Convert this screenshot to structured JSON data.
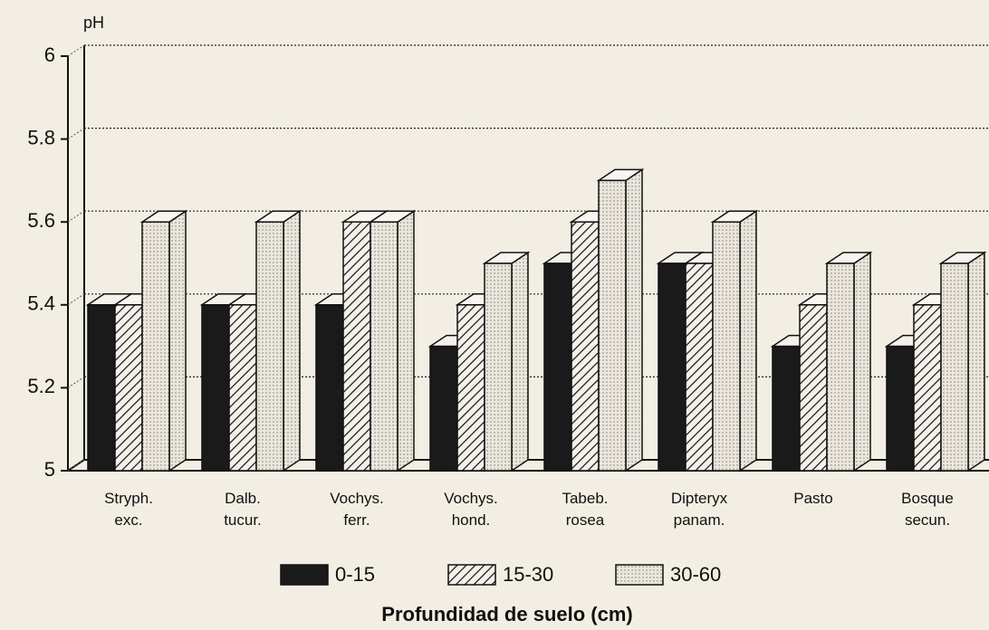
{
  "chart_data": {
    "type": "bar",
    "y_label": "pH",
    "x_title": "Profundidad de suelo (cm)",
    "categories": [
      "Stryph. exc.",
      "Dalb. tucur.",
      "Vochys. ferr.",
      "Vochys. hond.",
      "Tabeb. rosea",
      "Dipteryx panam.",
      "Pasto",
      "Bosque secun."
    ],
    "series": [
      {
        "name": "0-15",
        "color": "#1a1a1a",
        "values": [
          5.4,
          5.4,
          5.4,
          5.3,
          5.5,
          5.5,
          5.3,
          5.3
        ]
      },
      {
        "name": "15-30",
        "color": "hatch",
        "values": [
          5.4,
          5.4,
          5.6,
          5.4,
          5.6,
          5.5,
          5.4,
          5.4
        ]
      },
      {
        "name": "30-60",
        "color": "dots",
        "values": [
          5.6,
          5.6,
          5.6,
          5.5,
          5.7,
          5.6,
          5.5,
          5.5
        ]
      }
    ],
    "ylim": [
      5,
      6
    ],
    "yticks": [
      5,
      5.2,
      5.4,
      5.6,
      5.8,
      6
    ],
    "grid": true,
    "legend": "bottom"
  }
}
